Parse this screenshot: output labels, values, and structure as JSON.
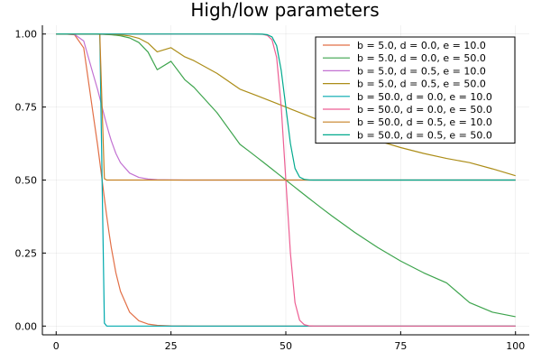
{
  "chart_data": {
    "type": "line",
    "title": "High/low parameters",
    "xlim": [
      0,
      100
    ],
    "ylim": [
      0,
      1
    ],
    "x_ticks": [
      0,
      25,
      50,
      75,
      100
    ],
    "x_tick_labels": [
      "0",
      "25",
      "50",
      "75",
      "100"
    ],
    "y_ticks": [
      0,
      0.25,
      0.5,
      0.75,
      1
    ],
    "y_tick_labels": [
      "0.00",
      "0.25",
      "0.50",
      "0.75",
      "1.00"
    ],
    "grid": true,
    "legend_position": "top-right",
    "x": [
      0,
      2,
      4,
      6,
      8,
      9,
      9.5,
      10,
      10.5,
      11,
      11.5,
      12,
      13,
      14,
      16,
      18,
      20,
      22,
      25,
      28,
      30,
      35,
      40,
      42,
      44,
      45,
      46,
      47,
      48,
      49,
      50,
      51,
      52,
      53,
      54,
      55,
      56,
      58,
      60,
      65,
      70,
      75,
      80,
      85,
      90,
      95,
      100
    ],
    "series": [
      {
        "name": "b = 5.0, d = 0.0, e = 10.0",
        "color": "#e26f46",
        "values": [
          1,
          0.9999,
          0.9975,
          0.9526,
          0.7311,
          0.6225,
          0.5622,
          0.5,
          0.4378,
          0.3775,
          0.3208,
          0.2689,
          0.1824,
          0.1192,
          0.0474,
          0.018,
          0.0067,
          0.0025,
          0.0006,
          0.0001,
          0,
          0,
          0,
          0,
          0,
          0,
          0,
          0,
          0,
          0,
          0,
          0,
          0,
          0,
          0,
          0,
          0,
          0,
          0,
          0,
          0,
          0,
          0,
          0,
          0,
          0,
          0
        ]
      },
      {
        "name": "b = 5.0, d = 0.0, e = 50.0",
        "color": "#3da44d",
        "values": [
          1,
          1,
          1,
          1,
          0.9996,
          0.9993,
          0.9991,
          0.9989,
          0.9986,
          0.9982,
          0.9978,
          0.9973,
          0.9959,
          0.994,
          0.9867,
          0.971,
          0.9383,
          0.8777,
          0.9066,
          0.8437,
          0.8176,
          0.7311,
          0.6225,
          0.5987,
          0.5744,
          0.5622,
          0.5498,
          0.5374,
          0.525,
          0.5125,
          0.5,
          0.4875,
          0.475,
          0.4626,
          0.4502,
          0.4378,
          0.4256,
          0.4013,
          0.3775,
          0.3208,
          0.2689,
          0.2227,
          0.1824,
          0.148,
          0.0802,
          0.0474,
          0.032
        ]
      },
      {
        "name": "b = 5.0, d = 0.5, e = 10.0",
        "color": "#c271d2",
        "values": [
          1,
          0.99995,
          0.9988,
          0.9763,
          0.8655,
          0.8113,
          0.7811,
          0.75,
          0.7189,
          0.6888,
          0.6604,
          0.6345,
          0.5912,
          0.5596,
          0.5237,
          0.509,
          0.5034,
          0.5012,
          0.5003,
          0.50005,
          0.5,
          0.5,
          0.5,
          0.5,
          0.5,
          0.5,
          0.5,
          0.5,
          0.5,
          0.5,
          0.5,
          0.5,
          0.5,
          0.5,
          0.5,
          0.5,
          0.5,
          0.5,
          0.5,
          0.5,
          0.5,
          0.5,
          0.5,
          0.5,
          0.5,
          0.5,
          0.5
        ]
      },
      {
        "name": "b = 5.0, d = 0.5, e = 50.0",
        "color": "#ac8d18",
        "values": [
          1,
          1,
          1,
          1,
          0.9998,
          0.9997,
          0.9996,
          0.9995,
          0.9993,
          0.9991,
          0.9989,
          0.9987,
          0.998,
          0.997,
          0.9934,
          0.9855,
          0.969,
          0.9389,
          0.9533,
          0.9219,
          0.9088,
          0.8655,
          0.8113,
          0.7993,
          0.7872,
          0.7811,
          0.7749,
          0.7687,
          0.7625,
          0.7563,
          0.75,
          0.7437,
          0.7375,
          0.7313,
          0.7251,
          0.7189,
          0.7128,
          0.7006,
          0.6888,
          0.6604,
          0.6345,
          0.6113,
          0.5912,
          0.574,
          0.5596,
          0.5383,
          0.515
        ]
      },
      {
        "name": "b = 50.0, d = 0.0, e = 10.0",
        "color": "#00a9ad",
        "values": [
          1,
          1,
          1,
          1,
          1,
          1,
          1,
          0.5,
          0.01,
          0.0001,
          0,
          0,
          0,
          0,
          0,
          0,
          0,
          0,
          0,
          0,
          0,
          0,
          0,
          0,
          0,
          0,
          0,
          0,
          0,
          0,
          0,
          0,
          0,
          0,
          0,
          0,
          0,
          0,
          0,
          0,
          0,
          0,
          0,
          0,
          0,
          0,
          0
        ]
      },
      {
        "name": "b = 50.0, d = 0.0, e = 50.0",
        "color": "#ed5e93",
        "values": [
          1,
          1,
          1,
          1,
          1,
          1,
          1,
          1,
          1,
          1,
          1,
          1,
          1,
          1,
          1,
          1,
          1,
          1,
          1,
          1,
          1,
          1,
          1,
          1,
          0.9997,
          0.999,
          0.995,
          0.98,
          0.92,
          0.75,
          0.5,
          0.25,
          0.08,
          0.02,
          0.005,
          0.001,
          0.0002,
          0,
          0,
          0,
          0,
          0,
          0,
          0,
          0,
          0,
          0
        ]
      },
      {
        "name": "b = 50.0, d = 0.5, e = 10.0",
        "color": "#c68225",
        "values": [
          1,
          1,
          1,
          1,
          1,
          1,
          1,
          0.75,
          0.505,
          0.50005,
          0.5,
          0.5,
          0.5,
          0.5,
          0.5,
          0.5,
          0.5,
          0.5,
          0.5,
          0.5,
          0.5,
          0.5,
          0.5,
          0.5,
          0.5,
          0.5,
          0.5,
          0.5,
          0.5,
          0.5,
          0.5,
          0.5,
          0.5,
          0.5,
          0.5,
          0.5,
          0.5,
          0.5,
          0.5,
          0.5,
          0.5,
          0.5,
          0.5,
          0.5,
          0.5,
          0.5,
          0.5
        ]
      },
      {
        "name": "b = 50.0, d = 0.5, e = 50.0",
        "color": "#00a98d",
        "values": [
          1,
          1,
          1,
          1,
          1,
          1,
          1,
          1,
          1,
          1,
          1,
          1,
          1,
          1,
          1,
          1,
          1,
          1,
          1,
          1,
          1,
          1,
          1,
          1,
          0.99985,
          0.9995,
          0.9975,
          0.99,
          0.96,
          0.875,
          0.75,
          0.625,
          0.54,
          0.51,
          0.5025,
          0.5005,
          0.5001,
          0.5,
          0.5,
          0.5,
          0.5,
          0.5,
          0.5,
          0.5,
          0.5,
          0.5,
          0.5
        ]
      }
    ]
  }
}
